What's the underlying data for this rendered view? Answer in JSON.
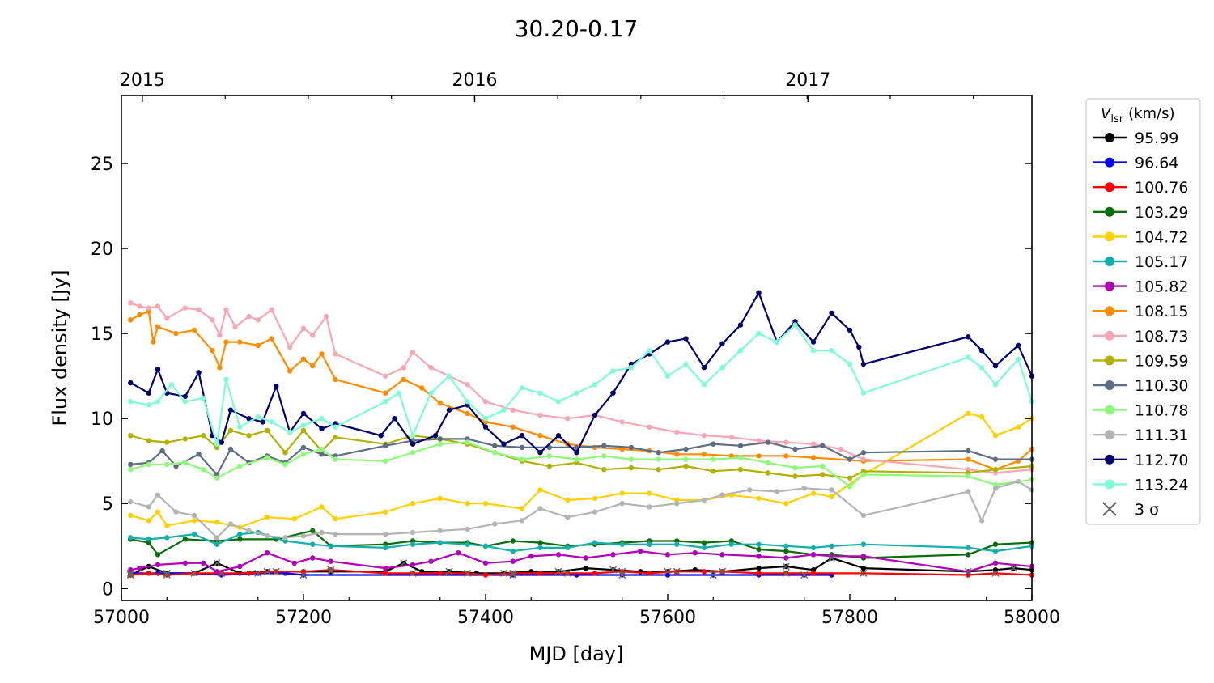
{
  "chart_data": {
    "type": "line",
    "title": "30.20-0.17",
    "xlabel": "MJD [day]",
    "ylabel": "Flux density [Jy]",
    "xlim": [
      57000,
      58000
    ],
    "ylim": [
      -0.7,
      29
    ],
    "x_ticks": [
      57000,
      57200,
      57400,
      57600,
      57800,
      58000
    ],
    "x_tick_labels": [
      "57000",
      "57200",
      "57400",
      "57600",
      "57800",
      "58000"
    ],
    "y_ticks": [
      0,
      5,
      10,
      15,
      20,
      25
    ],
    "y_tick_labels": [
      "0",
      "5",
      "10",
      "15",
      "20",
      "25"
    ],
    "top_axis": {
      "ticks": [
        57023,
        57388,
        57754
      ],
      "labels": [
        "2015",
        "2016",
        "2017"
      ]
    },
    "grid": false,
    "legend": {
      "placement": "outside-right",
      "title_main": "V",
      "title_sub": "lsr",
      "title_unit": "(km/s)",
      "sigma_label": "3 σ"
    },
    "series": [
      {
        "name": "95.99",
        "color": "#000000",
        "x": [
          57010,
          57030,
          57050,
          57080,
          57105,
          57130,
          57160,
          57200,
          57230,
          57290,
          57310,
          57330,
          57360,
          57390,
          57420,
          57450,
          57480,
          57510,
          57540,
          57570,
          57600,
          57630,
          57660,
          57700,
          57730,
          57760,
          57780,
          57815,
          57930,
          57960,
          57980,
          58000
        ],
        "y": [
          0.8,
          1.3,
          0.9,
          0.9,
          1.5,
          0.9,
          1.0,
          1.0,
          1.0,
          1.0,
          1.5,
          1.0,
          1.0,
          0.9,
          0.9,
          1.0,
          1.0,
          1.2,
          1.1,
          1.0,
          1.0,
          1.1,
          1.0,
          1.2,
          1.3,
          1.1,
          1.8,
          1.2,
          1.0,
          1.1,
          1.2,
          1.1
        ]
      },
      {
        "name": "96.64",
        "color": "#0000ff",
        "x": [
          57010,
          57040,
          57080,
          57110,
          57150,
          57180,
          57200,
          57400,
          57430,
          57500,
          57550,
          57600,
          57650,
          57700,
          57750,
          57780
        ],
        "y": [
          0.9,
          0.9,
          0.9,
          0.8,
          0.9,
          0.9,
          0.8,
          0.8,
          0.8,
          0.8,
          0.8,
          0.8,
          0.8,
          0.8,
          0.8,
          0.8
        ]
      },
      {
        "name": "100.76",
        "color": "#ff0000",
        "x": [
          57010,
          57030,
          57050,
          57080,
          57110,
          57140,
          57170,
          57200,
          57230,
          57290,
          57320,
          57350,
          57380,
          57400,
          57430,
          57460,
          57490,
          57520,
          57550,
          57580,
          57610,
          57640,
          57660,
          57700,
          57730,
          57760,
          57815,
          57930,
          57960,
          58000
        ],
        "y": [
          0.8,
          0.9,
          0.8,
          0.9,
          0.9,
          0.9,
          1.0,
          1.0,
          1.1,
          0.9,
          0.9,
          0.9,
          0.9,
          0.8,
          0.9,
          0.9,
          0.9,
          0.9,
          1.0,
          0.9,
          1.0,
          1.0,
          1.0,
          0.9,
          0.9,
          0.9,
          0.9,
          0.8,
          0.9,
          0.8
        ]
      },
      {
        "name": "103.29",
        "color": "#0a6e0a",
        "x": [
          57010,
          57030,
          57040,
          57070,
          57105,
          57130,
          57170,
          57210,
          57230,
          57290,
          57320,
          57350,
          57380,
          57400,
          57430,
          57460,
          57490,
          57520,
          57550,
          57580,
          57610,
          57640,
          57670,
          57700,
          57730,
          57760,
          57780,
          57815,
          57930,
          57960,
          58000
        ],
        "y": [
          2.9,
          2.7,
          2.0,
          2.9,
          2.8,
          2.9,
          2.9,
          3.4,
          2.5,
          2.6,
          2.8,
          2.7,
          2.7,
          2.5,
          2.8,
          2.7,
          2.5,
          2.6,
          2.7,
          2.8,
          2.8,
          2.7,
          2.8,
          2.3,
          2.2,
          2.0,
          2.0,
          1.8,
          2.0,
          2.6,
          2.7
        ]
      },
      {
        "name": "104.72",
        "color": "#ffd000",
        "x": [
          57010,
          57030,
          57040,
          57050,
          57080,
          57105,
          57130,
          57160,
          57190,
          57220,
          57235,
          57290,
          57320,
          57350,
          57380,
          57400,
          57440,
          57460,
          57490,
          57520,
          57550,
          57580,
          57610,
          57640,
          57670,
          57700,
          57730,
          57760,
          57780,
          57815,
          57930,
          57945,
          57960,
          57985,
          58000
        ],
        "y": [
          4.3,
          4.0,
          4.5,
          3.7,
          4.0,
          3.9,
          3.6,
          4.2,
          4.1,
          4.8,
          4.1,
          4.5,
          5.0,
          5.3,
          5.0,
          5.0,
          4.7,
          5.8,
          5.2,
          5.3,
          5.6,
          5.6,
          5.2,
          5.2,
          5.5,
          5.3,
          5.0,
          5.6,
          5.4,
          6.7,
          10.3,
          10.1,
          9.0,
          9.5,
          10.0
        ]
      },
      {
        "name": "105.17",
        "color": "#12b0a8",
        "x": [
          57010,
          57030,
          57050,
          57080,
          57105,
          57130,
          57150,
          57180,
          57210,
          57230,
          57290,
          57320,
          57350,
          57380,
          57400,
          57430,
          57460,
          57490,
          57520,
          57550,
          57580,
          57610,
          57640,
          57670,
          57700,
          57730,
          57760,
          57780,
          57815,
          57930,
          57960,
          58000
        ],
        "y": [
          3.0,
          2.9,
          3.0,
          3.2,
          2.6,
          3.2,
          3.3,
          2.8,
          2.6,
          2.5,
          2.4,
          2.6,
          2.7,
          2.6,
          2.5,
          2.2,
          2.4,
          2.4,
          2.7,
          2.6,
          2.6,
          2.6,
          2.4,
          2.6,
          2.6,
          2.5,
          2.4,
          2.5,
          2.6,
          2.4,
          2.2,
          2.5
        ]
      },
      {
        "name": "105.82",
        "color": "#b000b8",
        "x": [
          57010,
          57020,
          57040,
          57070,
          57090,
          57105,
          57130,
          57160,
          57190,
          57210,
          57230,
          57290,
          57320,
          57340,
          57370,
          57400,
          57430,
          57450,
          57480,
          57510,
          57540,
          57570,
          57600,
          57630,
          57660,
          57700,
          57730,
          57760,
          57780,
          57815,
          57930,
          57960,
          58000
        ],
        "y": [
          1.1,
          1.2,
          1.4,
          1.5,
          1.5,
          1.0,
          1.3,
          2.1,
          1.5,
          1.8,
          1.6,
          1.2,
          1.4,
          1.6,
          2.1,
          1.5,
          1.6,
          1.9,
          2.0,
          1.8,
          2.0,
          2.2,
          2.0,
          2.1,
          2.0,
          1.9,
          1.8,
          2.0,
          1.9,
          1.9,
          1.0,
          1.5,
          1.3
        ]
      },
      {
        "name": "108.15",
        "color": "#ff8c00",
        "x": [
          57010,
          57020,
          57030,
          57035,
          57040,
          57060,
          57080,
          57100,
          57108,
          57115,
          57130,
          57150,
          57165,
          57185,
          57200,
          57210,
          57220,
          57235,
          57290,
          57310,
          57330,
          57350,
          57380,
          57400,
          57430,
          57460,
          57490,
          57520,
          57550,
          57580,
          57610,
          57640,
          57670,
          57700,
          57730,
          57760,
          57815,
          57930,
          57960,
          57985,
          58000
        ],
        "y": [
          15.8,
          16.1,
          16.3,
          14.5,
          15.4,
          15.0,
          15.2,
          14.0,
          13.0,
          14.5,
          14.5,
          14.3,
          14.7,
          12.8,
          13.5,
          13.1,
          13.8,
          12.3,
          11.5,
          12.3,
          11.8,
          10.9,
          10.3,
          9.8,
          9.5,
          9.0,
          8.5,
          8.3,
          8.2,
          8.1,
          7.9,
          7.9,
          7.8,
          7.8,
          7.8,
          7.7,
          7.5,
          7.6,
          7.0,
          7.5,
          8.2
        ]
      },
      {
        "name": "108.73",
        "color": "#f9a6b4",
        "x": [
          57010,
          57020,
          57030,
          57040,
          57050,
          57070,
          57085,
          57100,
          57108,
          57115,
          57125,
          57140,
          57150,
          57165,
          57185,
          57200,
          57210,
          57225,
          57235,
          57290,
          57310,
          57320,
          57340,
          57360,
          57380,
          57400,
          57430,
          57460,
          57490,
          57520,
          57550,
          57580,
          57610,
          57640,
          57670,
          57700,
          57730,
          57760,
          57790,
          57815,
          57930,
          57960,
          58000
        ],
        "y": [
          16.8,
          16.6,
          16.5,
          16.6,
          15.9,
          16.5,
          16.4,
          15.8,
          14.9,
          16.4,
          15.4,
          16.0,
          15.8,
          16.4,
          14.2,
          15.3,
          14.9,
          16.0,
          13.8,
          12.5,
          13.0,
          13.9,
          13.0,
          12.5,
          12.0,
          11.0,
          10.5,
          10.2,
          10.0,
          10.2,
          9.8,
          9.5,
          9.2,
          9.0,
          8.9,
          8.7,
          8.6,
          8.5,
          8.2,
          7.6,
          7.0,
          6.8,
          7.0
        ]
      },
      {
        "name": "109.59",
        "color": "#b0b000",
        "x": [
          57010,
          57030,
          57050,
          57070,
          57090,
          57105,
          57120,
          57140,
          57160,
          57180,
          57200,
          57220,
          57235,
          57290,
          57320,
          57350,
          57380,
          57410,
          57440,
          57470,
          57500,
          57530,
          57560,
          57590,
          57620,
          57650,
          57680,
          57710,
          57740,
          57770,
          57800,
          57815,
          57930,
          57960,
          58000
        ],
        "y": [
          9.0,
          8.7,
          8.6,
          8.8,
          9.0,
          8.3,
          9.3,
          9.0,
          9.3,
          8.0,
          9.3,
          8.1,
          8.9,
          8.5,
          9.0,
          8.8,
          8.5,
          8.0,
          7.5,
          7.2,
          7.4,
          7.0,
          7.1,
          7.0,
          7.2,
          6.9,
          7.0,
          6.8,
          6.6,
          6.7,
          6.5,
          6.9,
          6.8,
          7.0,
          7.2
        ]
      },
      {
        "name": "110.30",
        "color": "#5e6e82",
        "x": [
          57010,
          57030,
          57045,
          57060,
          57085,
          57105,
          57120,
          57140,
          57160,
          57180,
          57200,
          57220,
          57235,
          57290,
          57320,
          57350,
          57380,
          57410,
          57440,
          57470,
          57500,
          57530,
          57560,
          57590,
          57620,
          57650,
          57680,
          57710,
          57740,
          57770,
          57800,
          57815,
          57930,
          57960,
          58000
        ],
        "y": [
          7.3,
          7.4,
          8.1,
          7.2,
          7.9,
          6.7,
          8.2,
          7.4,
          7.8,
          7.4,
          8.3,
          7.9,
          7.8,
          8.4,
          8.7,
          8.8,
          8.8,
          8.4,
          8.3,
          8.3,
          8.3,
          8.4,
          8.3,
          8.0,
          8.2,
          8.5,
          8.4,
          8.6,
          8.2,
          8.4,
          7.6,
          8.0,
          8.1,
          7.6,
          7.6
        ]
      },
      {
        "name": "110.78",
        "color": "#8cfc78",
        "x": [
          57010,
          57030,
          57050,
          57070,
          57090,
          57105,
          57130,
          57160,
          57180,
          57200,
          57220,
          57235,
          57290,
          57320,
          57350,
          57380,
          57410,
          57440,
          57470,
          57500,
          57530,
          57560,
          57590,
          57620,
          57650,
          57680,
          57710,
          57740,
          57770,
          57800,
          57815,
          57930,
          57960,
          58000
        ],
        "y": [
          7.0,
          7.3,
          7.3,
          7.4,
          7.0,
          6.5,
          7.2,
          7.7,
          7.3,
          7.9,
          8.2,
          7.6,
          7.5,
          8.0,
          8.5,
          8.6,
          8.0,
          7.6,
          7.8,
          7.6,
          7.8,
          7.6,
          7.6,
          7.6,
          7.6,
          7.7,
          7.4,
          7.1,
          7.2,
          6.0,
          6.7,
          6.6,
          6.1,
          6.4
        ]
      },
      {
        "name": "111.31",
        "color": "#b4b4b4",
        "x": [
          57010,
          57030,
          57040,
          57060,
          57080,
          57105,
          57120,
          57140,
          57160,
          57180,
          57200,
          57220,
          57235,
          57290,
          57320,
          57350,
          57380,
          57410,
          57440,
          57460,
          57490,
          57520,
          57550,
          57580,
          57610,
          57640,
          57660,
          57690,
          57720,
          57750,
          57780,
          57815,
          57930,
          57945,
          57960,
          57985,
          58000
        ],
        "y": [
          5.1,
          4.8,
          5.5,
          4.5,
          4.3,
          3.0,
          3.8,
          3.4,
          3.1,
          3.0,
          3.1,
          3.3,
          3.2,
          3.2,
          3.3,
          3.4,
          3.5,
          3.8,
          4.0,
          4.7,
          4.2,
          4.5,
          5.0,
          4.8,
          5.0,
          5.2,
          5.5,
          5.8,
          5.7,
          5.9,
          5.8,
          4.3,
          5.7,
          4.0,
          5.9,
          6.3,
          5.8
        ]
      },
      {
        "name": "112.70",
        "color": "#00006e",
        "x": [
          57010,
          57030,
          57040,
          57050,
          57070,
          57085,
          57100,
          57110,
          57120,
          57140,
          57155,
          57170,
          57185,
          57200,
          57220,
          57235,
          57285,
          57300,
          57320,
          57345,
          57360,
          57380,
          57400,
          57420,
          57440,
          57460,
          57480,
          57500,
          57520,
          57540,
          57560,
          57580,
          57600,
          57620,
          57640,
          57660,
          57680,
          57700,
          57720,
          57740,
          57760,
          57780,
          57800,
          57810,
          57815,
          57930,
          57945,
          57960,
          57985,
          58000
        ],
        "y": [
          12.1,
          11.5,
          12.9,
          11.5,
          11.3,
          12.7,
          9.0,
          8.6,
          10.5,
          10.0,
          9.8,
          11.9,
          9.2,
          10.3,
          9.4,
          9.7,
          9.0,
          10.0,
          8.5,
          9.0,
          10.5,
          10.8,
          9.5,
          8.5,
          9.0,
          8.0,
          9.0,
          8.0,
          10.2,
          11.5,
          13.2,
          13.8,
          14.5,
          14.7,
          13.0,
          14.4,
          15.5,
          17.4,
          14.5,
          15.7,
          14.5,
          16.2,
          15.2,
          14.2,
          13.2,
          14.8,
          14.0,
          13.1,
          14.3,
          12.5
        ]
      },
      {
        "name": "113.24",
        "color": "#7efcd4",
        "x": [
          57010,
          57030,
          57040,
          57055,
          57070,
          57090,
          57105,
          57115,
          57130,
          57150,
          57165,
          57185,
          57200,
          57220,
          57235,
          57290,
          57305,
          57320,
          57340,
          57360,
          57380,
          57400,
          57420,
          57440,
          57460,
          57480,
          57500,
          57520,
          57540,
          57560,
          57580,
          57600,
          57620,
          57640,
          57660,
          57680,
          57700,
          57720,
          57740,
          57760,
          57780,
          57800,
          57815,
          57930,
          57945,
          57960,
          57985,
          58000
        ],
        "y": [
          11.0,
          10.8,
          11.0,
          12.0,
          11.0,
          11.2,
          8.5,
          12.3,
          9.5,
          10.1,
          9.8,
          9.2,
          9.6,
          10.0,
          9.5,
          11.0,
          11.5,
          9.0,
          11.5,
          12.5,
          11.0,
          10.0,
          10.5,
          11.8,
          11.5,
          11.0,
          11.5,
          12.0,
          12.8,
          13.0,
          14.0,
          12.5,
          13.2,
          12.0,
          13.0,
          14.0,
          15.0,
          14.5,
          15.5,
          14.0,
          14.0,
          13.2,
          11.5,
          13.6,
          13.0,
          12.0,
          13.5,
          11.0
        ]
      }
    ]
  }
}
